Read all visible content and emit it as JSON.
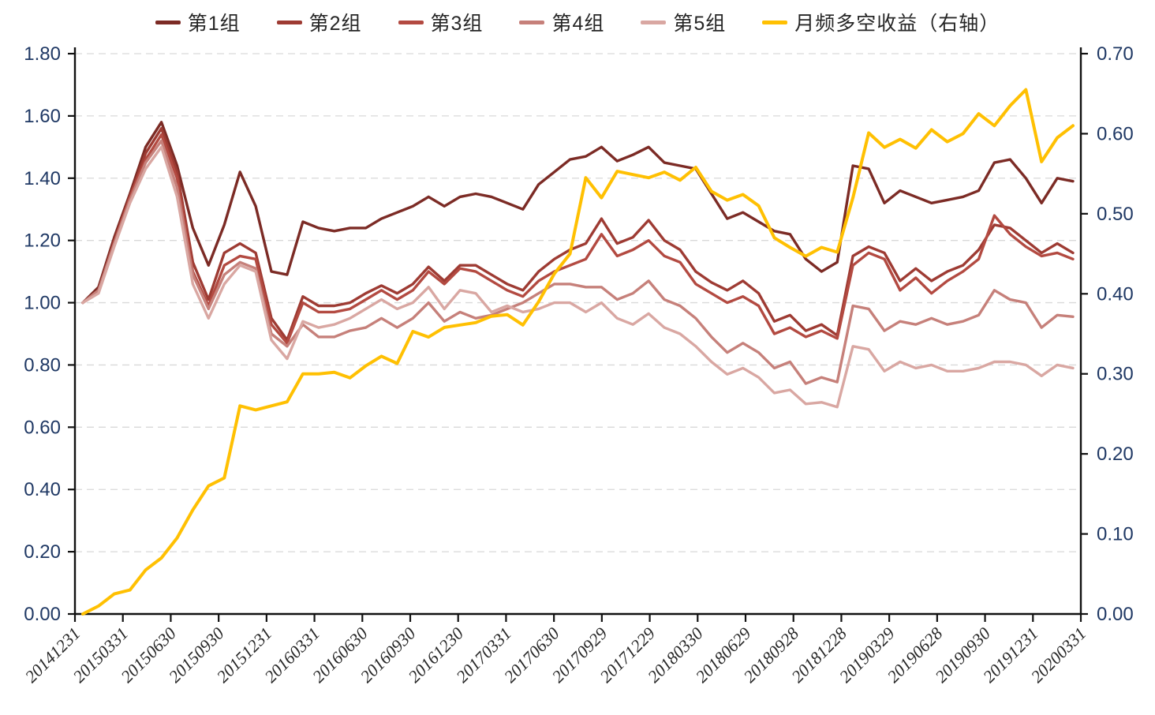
{
  "chart_data": {
    "type": "line",
    "title": "",
    "x": [
      "20141231",
      "20150130",
      "20150227",
      "20150331",
      "20150430",
      "20150529",
      "20150630",
      "20150731",
      "20150831",
      "20150930",
      "20151030",
      "20151130",
      "20151231",
      "20160129",
      "20160229",
      "20160331",
      "20160429",
      "20160531",
      "20160630",
      "20160729",
      "20160831",
      "20160930",
      "20161031",
      "20161130",
      "20161230",
      "20170126",
      "20170228",
      "20170331",
      "20170428",
      "20170531",
      "20170630",
      "20170731",
      "20170831",
      "20170929",
      "20171031",
      "20171130",
      "20171229",
      "20180131",
      "20180228",
      "20180330",
      "20180427",
      "20180531",
      "20180629",
      "20180731",
      "20180831",
      "20180928",
      "20181031",
      "20181130",
      "20181228",
      "20190131",
      "20190228",
      "20190329",
      "20190430",
      "20190531",
      "20190628",
      "20190731",
      "20190830",
      "20190930",
      "20191031",
      "20191129",
      "20191231",
      "20200123",
      "20200228",
      "20200331"
    ],
    "x_tick_labels": [
      "20141231",
      "20150331",
      "20150630",
      "20150930",
      "20151231",
      "20160331",
      "20160630",
      "20160930",
      "20161230",
      "20170331",
      "20170630",
      "20170929",
      "20171229",
      "20180330",
      "20180629",
      "20180928",
      "20181228",
      "20190329",
      "20190628",
      "20190930",
      "20191231",
      "20200331"
    ],
    "left_axis": {
      "min": 0.0,
      "max": 1.8,
      "step": 0.2,
      "tick_labels": [
        "0.00",
        "0.20",
        "0.40",
        "0.60",
        "0.80",
        "1.00",
        "1.20",
        "1.40",
        "1.60",
        "1.80"
      ],
      "label_color": "#1F3864"
    },
    "right_axis": {
      "min": 0.0,
      "max": 0.7,
      "step": 0.1,
      "tick_labels": [
        "0.00",
        "0.10",
        "0.20",
        "0.30",
        "0.40",
        "0.50",
        "0.60",
        "0.70"
      ],
      "label_color": "#1F3864"
    },
    "grid": {
      "show": true,
      "color": "#D9D9D9",
      "dash": "9 6"
    },
    "legend_position": "top",
    "series": [
      {
        "name": "第1组",
        "axis": "left",
        "color": "#7C2B25",
        "width": 3.4,
        "values": [
          1.0,
          1.05,
          1.21,
          1.35,
          1.5,
          1.58,
          1.44,
          1.24,
          1.12,
          1.25,
          1.42,
          1.31,
          1.1,
          1.09,
          1.26,
          1.24,
          1.23,
          1.24,
          1.24,
          1.27,
          1.29,
          1.31,
          1.34,
          1.31,
          1.34,
          1.35,
          1.34,
          1.32,
          1.3,
          1.38,
          1.42,
          1.46,
          1.47,
          1.5,
          1.455,
          1.475,
          1.5,
          1.45,
          1.44,
          1.43,
          1.35,
          1.27,
          1.29,
          1.26,
          1.23,
          1.22,
          1.14,
          1.1,
          1.13,
          1.44,
          1.43,
          1.32,
          1.36,
          1.34,
          1.32,
          1.33,
          1.34,
          1.36,
          1.45,
          1.46,
          1.4,
          1.32,
          1.4,
          1.39
        ]
      },
      {
        "name": "第2组",
        "axis": "left",
        "color": "#9E3B33",
        "width": 3.4,
        "values": [
          1.0,
          1.04,
          1.2,
          1.34,
          1.48,
          1.56,
          1.42,
          1.13,
          1.01,
          1.16,
          1.19,
          1.16,
          0.95,
          0.88,
          1.02,
          0.99,
          0.99,
          1.0,
          1.03,
          1.055,
          1.03,
          1.06,
          1.115,
          1.07,
          1.12,
          1.12,
          1.09,
          1.06,
          1.04,
          1.1,
          1.14,
          1.17,
          1.19,
          1.27,
          1.19,
          1.21,
          1.265,
          1.2,
          1.17,
          1.1,
          1.065,
          1.04,
          1.07,
          1.03,
          0.94,
          0.96,
          0.91,
          0.93,
          0.895,
          1.15,
          1.18,
          1.16,
          1.07,
          1.11,
          1.07,
          1.1,
          1.12,
          1.17,
          1.25,
          1.24,
          1.2,
          1.16,
          1.19,
          1.16
        ]
      },
      {
        "name": "第3组",
        "axis": "left",
        "color": "#B34A41",
        "width": 3.4,
        "values": [
          1.0,
          1.04,
          1.19,
          1.34,
          1.46,
          1.54,
          1.4,
          1.1,
          0.99,
          1.12,
          1.15,
          1.14,
          0.93,
          0.87,
          1.0,
          0.97,
          0.97,
          0.98,
          1.01,
          1.04,
          1.01,
          1.04,
          1.1,
          1.06,
          1.11,
          1.1,
          1.07,
          1.04,
          1.02,
          1.07,
          1.1,
          1.12,
          1.14,
          1.22,
          1.15,
          1.17,
          1.2,
          1.15,
          1.13,
          1.06,
          1.03,
          1.0,
          1.02,
          0.99,
          0.9,
          0.92,
          0.89,
          0.91,
          0.885,
          1.12,
          1.16,
          1.14,
          1.04,
          1.08,
          1.03,
          1.07,
          1.1,
          1.14,
          1.28,
          1.22,
          1.18,
          1.15,
          1.16,
          1.14
        ]
      },
      {
        "name": "第4组",
        "axis": "left",
        "color": "#C6807A",
        "width": 3.4,
        "values": [
          1.0,
          1.04,
          1.19,
          1.33,
          1.45,
          1.52,
          1.37,
          1.09,
          0.98,
          1.09,
          1.13,
          1.11,
          0.9,
          0.86,
          0.93,
          0.89,
          0.89,
          0.91,
          0.92,
          0.95,
          0.92,
          0.95,
          1.0,
          0.94,
          0.97,
          0.95,
          0.96,
          0.98,
          1.0,
          1.03,
          1.06,
          1.06,
          1.05,
          1.05,
          1.01,
          1.03,
          1.07,
          1.01,
          0.99,
          0.95,
          0.89,
          0.84,
          0.87,
          0.84,
          0.79,
          0.81,
          0.74,
          0.76,
          0.745,
          0.99,
          0.98,
          0.91,
          0.94,
          0.93,
          0.95,
          0.93,
          0.94,
          0.96,
          1.04,
          1.01,
          1.0,
          0.92,
          0.96,
          0.955
        ]
      },
      {
        "name": "第5组",
        "axis": "left",
        "color": "#D9A7A2",
        "width": 3.4,
        "values": [
          1.0,
          1.03,
          1.18,
          1.32,
          1.43,
          1.5,
          1.34,
          1.06,
          0.95,
          1.06,
          1.12,
          1.1,
          0.88,
          0.82,
          0.94,
          0.92,
          0.93,
          0.95,
          0.98,
          1.01,
          0.98,
          1.0,
          1.05,
          0.98,
          1.04,
          1.03,
          0.97,
          0.99,
          0.97,
          0.98,
          1.0,
          1.0,
          0.97,
          1.0,
          0.95,
          0.93,
          0.965,
          0.92,
          0.9,
          0.86,
          0.81,
          0.77,
          0.79,
          0.76,
          0.71,
          0.72,
          0.675,
          0.68,
          0.665,
          0.86,
          0.85,
          0.78,
          0.81,
          0.79,
          0.8,
          0.78,
          0.78,
          0.79,
          0.81,
          0.81,
          0.8,
          0.765,
          0.8,
          0.79
        ]
      },
      {
        "name": "月频多空收益（右轴）",
        "axis": "right",
        "color": "#FFC002",
        "width": 4.0,
        "values": [
          0.0,
          0.01,
          0.025,
          0.03,
          0.055,
          0.07,
          0.095,
          0.13,
          0.16,
          0.17,
          0.26,
          0.255,
          0.26,
          0.265,
          0.3,
          0.3,
          0.302,
          0.295,
          0.31,
          0.322,
          0.313,
          0.353,
          0.346,
          0.358,
          0.361,
          0.364,
          0.372,
          0.374,
          0.361,
          0.39,
          0.425,
          0.45,
          0.545,
          0.52,
          0.553,
          0.549,
          0.545,
          0.552,
          0.542,
          0.558,
          0.528,
          0.517,
          0.524,
          0.51,
          0.47,
          0.458,
          0.447,
          0.458,
          0.452,
          0.52,
          0.601,
          0.583,
          0.593,
          0.582,
          0.605,
          0.59,
          0.6,
          0.625,
          0.61,
          0.635,
          0.655,
          0.565,
          0.595,
          0.61
        ]
      }
    ]
  },
  "legend": {
    "items": [
      {
        "label": "第1组"
      },
      {
        "label": "第2组"
      },
      {
        "label": "第3组"
      },
      {
        "label": "第4组"
      },
      {
        "label": "第5组"
      },
      {
        "label": "月频多空收益（右轴）"
      }
    ]
  },
  "style": {
    "axis_color": "#111111",
    "x_label_color": "#262626",
    "y_label_color": "#1F3864"
  }
}
